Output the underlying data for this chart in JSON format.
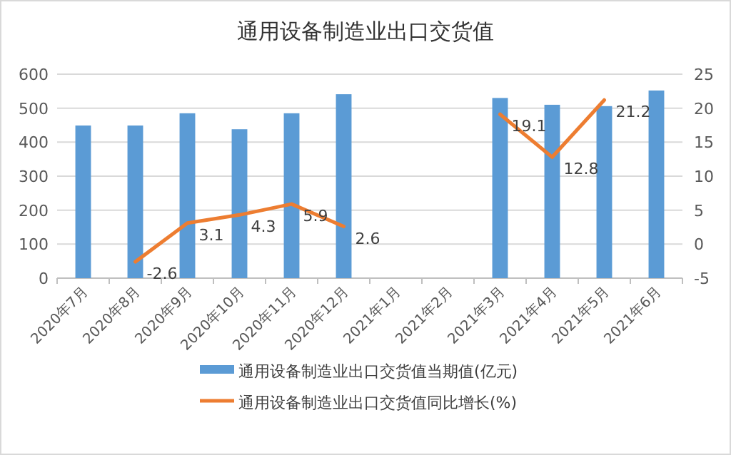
{
  "chart_data": {
    "type": "bar",
    "title": "通用设备制造业出口交货值",
    "categories": [
      "2020年7月",
      "2020年8月",
      "2020年9月",
      "2020年10月",
      "2020年11月",
      "2020年12月",
      "2021年1月",
      "2021年2月",
      "2021年3月",
      "2021年4月",
      "2021年5月",
      "2021年6月"
    ],
    "series": [
      {
        "name": "通用设备制造业出口交货值当期值(亿元)",
        "color": "#5b9bd5",
        "values": [
          449,
          449,
          485,
          438,
          485,
          541,
          null,
          null,
          530,
          510,
          506,
          552
        ]
      },
      {
        "name": "通用设备制造业出口交货值同比增长(%)",
        "type": "line",
        "axis": "y2",
        "color": "#ed7d31",
        "values": [
          null,
          -2.6,
          3.1,
          4.3,
          5.9,
          2.6,
          null,
          null,
          19.1,
          12.8,
          21.2,
          null
        ],
        "value_labels": [
          null,
          "-2.6",
          "3.1",
          "4.3",
          "5.9",
          "2.6",
          null,
          null,
          "19.1",
          "12.8",
          "21.2",
          null
        ]
      }
    ],
    "ylim": [
      0,
      600
    ],
    "yticks": [
      0,
      100,
      200,
      300,
      400,
      500,
      600
    ],
    "y2lim": [
      -5,
      25
    ],
    "y2ticks": [
      -5,
      0,
      5,
      10,
      15,
      20,
      25
    ],
    "grid": "y",
    "legend": "bottom"
  }
}
